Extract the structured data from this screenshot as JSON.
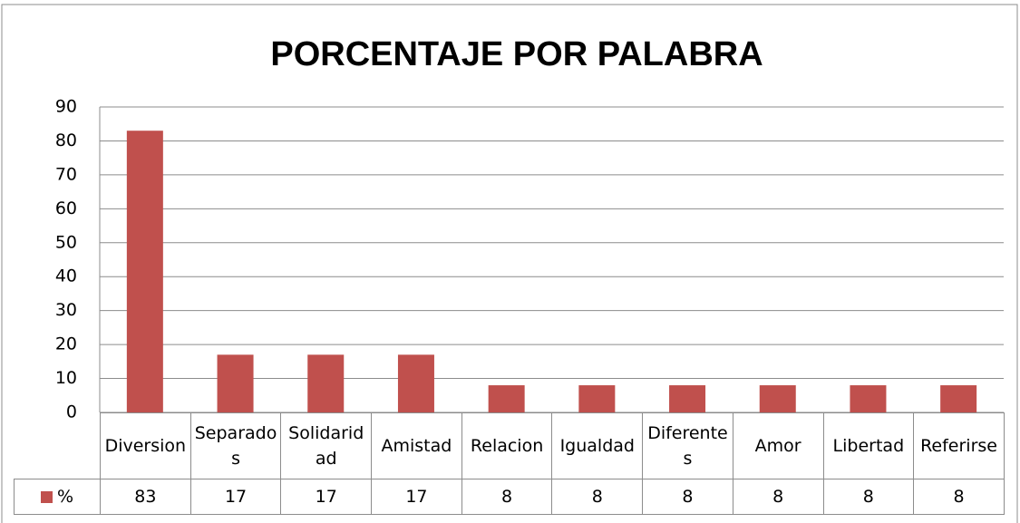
{
  "chart_data": {
    "type": "bar",
    "title": "PORCENTAJE POR PALABRA",
    "categories": [
      "Diversion",
      "Separados",
      "Solidaridad",
      "Amistad",
      "Relacion",
      "Igualdad",
      "Diferentes",
      "Amor",
      "Libertad",
      "Referirse"
    ],
    "series": [
      {
        "name": "%",
        "color": "#c0504d",
        "values": [
          83,
          17,
          17,
          17,
          8,
          8,
          8,
          8,
          8,
          8
        ]
      }
    ],
    "ylim": [
      0,
      90
    ],
    "yticks": [
      0,
      10,
      20,
      30,
      40,
      50,
      60,
      70,
      80,
      90
    ],
    "grid": true,
    "data_table": true
  }
}
